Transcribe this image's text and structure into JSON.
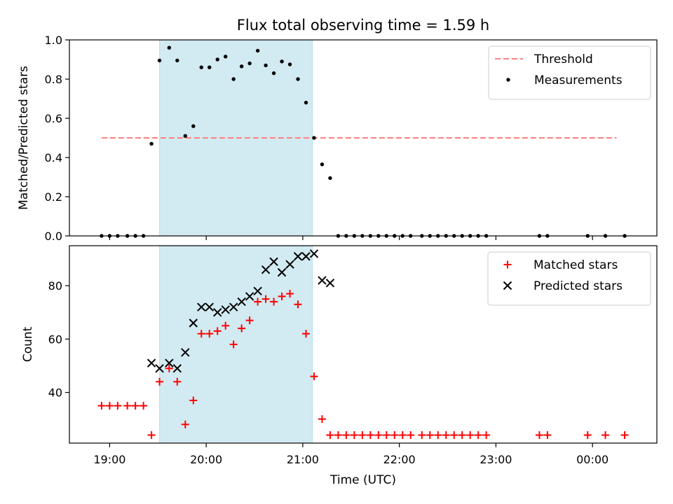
{
  "chart_data": {
    "title": "Flux total observing time = 1.59 h",
    "xlabel": "Time (UTC)",
    "x_ticks": [
      "19:00",
      "20:00",
      "21:00",
      "22:00",
      "23:00",
      "00:00"
    ],
    "highlight_span": {
      "start": "19:31",
      "end": "21:06",
      "color": "#add8e6"
    },
    "panels": [
      {
        "type": "scatter",
        "ylabel": "Matched/Predicted stars",
        "ylim": [
          0,
          1.0
        ],
        "yticks": [
          "0.0",
          "0.2",
          "0.4",
          "0.6",
          "0.8",
          "1.0"
        ],
        "legend_position": "top-right",
        "threshold": {
          "name": "Threshold",
          "value": 0.5,
          "x_start": "18:55",
          "x_end": "00:15",
          "color": "#ff8080"
        },
        "series": [
          {
            "name": "Measurements",
            "marker": "dot",
            "color": "#000000",
            "points": [
              [
                "18:55",
                0
              ],
              [
                "19:00",
                0
              ],
              [
                "19:05",
                0
              ],
              [
                "19:11",
                0
              ],
              [
                "19:16",
                0
              ],
              [
                "19:21",
                0
              ],
              [
                "19:26",
                0.47
              ],
              [
                "19:31",
                0.895
              ],
              [
                "19:37",
                0.96
              ],
              [
                "19:42",
                0.895
              ],
              [
                "19:47",
                0.51
              ],
              [
                "19:52",
                0.56
              ],
              [
                "19:57",
                0.86
              ],
              [
                "20:02",
                0.86
              ],
              [
                "20:07",
                0.9
              ],
              [
                "20:12",
                0.915
              ],
              [
                "20:17",
                0.8
              ],
              [
                "20:22",
                0.865
              ],
              [
                "20:27",
                0.88
              ],
              [
                "20:32",
                0.945
              ],
              [
                "20:37",
                0.87
              ],
              [
                "20:42",
                0.83
              ],
              [
                "20:47",
                0.89
              ],
              [
                "20:52",
                0.875
              ],
              [
                "20:57",
                0.8
              ],
              [
                "21:02",
                0.68
              ],
              [
                "21:07",
                0.5
              ],
              [
                "21:12",
                0.365
              ],
              [
                "21:17",
                0.295
              ],
              [
                "21:22",
                0
              ],
              [
                "21:27",
                0
              ],
              [
                "21:32",
                0
              ],
              [
                "21:37",
                0
              ],
              [
                "21:42",
                0
              ],
              [
                "21:47",
                0
              ],
              [
                "21:52",
                0
              ],
              [
                "21:57",
                0
              ],
              [
                "22:02",
                0
              ],
              [
                "22:07",
                0
              ],
              [
                "22:14",
                0
              ],
              [
                "22:19",
                0
              ],
              [
                "22:24",
                0
              ],
              [
                "22:29",
                0
              ],
              [
                "22:34",
                0
              ],
              [
                "22:39",
                0
              ],
              [
                "22:44",
                0
              ],
              [
                "22:49",
                0
              ],
              [
                "22:54",
                0
              ],
              [
                "23:27",
                0
              ],
              [
                "23:32",
                0
              ],
              [
                "23:57",
                0
              ],
              [
                "00:08",
                0
              ],
              [
                "00:20",
                0
              ]
            ]
          }
        ]
      },
      {
        "type": "scatter",
        "ylabel": "Count",
        "ylim": [
          21,
          95
        ],
        "yticks": [
          "40",
          "60",
          "80"
        ],
        "legend_position": "top-right",
        "series": [
          {
            "name": "Matched stars",
            "marker": "plus",
            "color": "#ff0000",
            "points": [
              [
                "18:55",
                35
              ],
              [
                "19:00",
                35
              ],
              [
                "19:05",
                35
              ],
              [
                "19:11",
                35
              ],
              [
                "19:16",
                35
              ],
              [
                "19:21",
                35
              ],
              [
                "19:26",
                24
              ],
              [
                "19:31",
                44
              ],
              [
                "19:37",
                49
              ],
              [
                "19:42",
                44
              ],
              [
                "19:47",
                28
              ],
              [
                "19:52",
                37
              ],
              [
                "19:57",
                62
              ],
              [
                "20:02",
                62
              ],
              [
                "20:07",
                63
              ],
              [
                "20:12",
                65
              ],
              [
                "20:17",
                58
              ],
              [
                "20:22",
                64
              ],
              [
                "20:27",
                67
              ],
              [
                "20:32",
                74
              ],
              [
                "20:37",
                75
              ],
              [
                "20:42",
                74
              ],
              [
                "20:47",
                76
              ],
              [
                "20:52",
                77
              ],
              [
                "20:57",
                73
              ],
              [
                "21:02",
                62
              ],
              [
                "21:07",
                46
              ],
              [
                "21:12",
                30
              ],
              [
                "21:17",
                24
              ],
              [
                "21:22",
                24
              ],
              [
                "21:27",
                24
              ],
              [
                "21:32",
                24
              ],
              [
                "21:37",
                24
              ],
              [
                "21:42",
                24
              ],
              [
                "21:47",
                24
              ],
              [
                "21:52",
                24
              ],
              [
                "21:57",
                24
              ],
              [
                "22:02",
                24
              ],
              [
                "22:07",
                24
              ],
              [
                "22:14",
                24
              ],
              [
                "22:19",
                24
              ],
              [
                "22:24",
                24
              ],
              [
                "22:29",
                24
              ],
              [
                "22:34",
                24
              ],
              [
                "22:39",
                24
              ],
              [
                "22:44",
                24
              ],
              [
                "22:49",
                24
              ],
              [
                "22:54",
                24
              ],
              [
                "23:27",
                24
              ],
              [
                "23:32",
                24
              ],
              [
                "23:57",
                24
              ],
              [
                "00:08",
                24
              ],
              [
                "00:20",
                24
              ]
            ]
          },
          {
            "name": "Predicted stars",
            "marker": "x",
            "color": "#000000",
            "points": [
              [
                "19:26",
                51
              ],
              [
                "19:31",
                49
              ],
              [
                "19:37",
                51
              ],
              [
                "19:42",
                49
              ],
              [
                "19:47",
                55
              ],
              [
                "19:52",
                66
              ],
              [
                "19:57",
                72
              ],
              [
                "20:02",
                72
              ],
              [
                "20:07",
                70
              ],
              [
                "20:12",
                71
              ],
              [
                "20:17",
                72
              ],
              [
                "20:22",
                74
              ],
              [
                "20:27",
                76
              ],
              [
                "20:32",
                78
              ],
              [
                "20:37",
                86
              ],
              [
                "20:42",
                89
              ],
              [
                "20:47",
                85
              ],
              [
                "20:52",
                88
              ],
              [
                "20:57",
                91
              ],
              [
                "21:02",
                91
              ],
              [
                "21:07",
                92
              ],
              [
                "21:12",
                82
              ],
              [
                "21:17",
                81
              ]
            ]
          }
        ]
      }
    ]
  }
}
